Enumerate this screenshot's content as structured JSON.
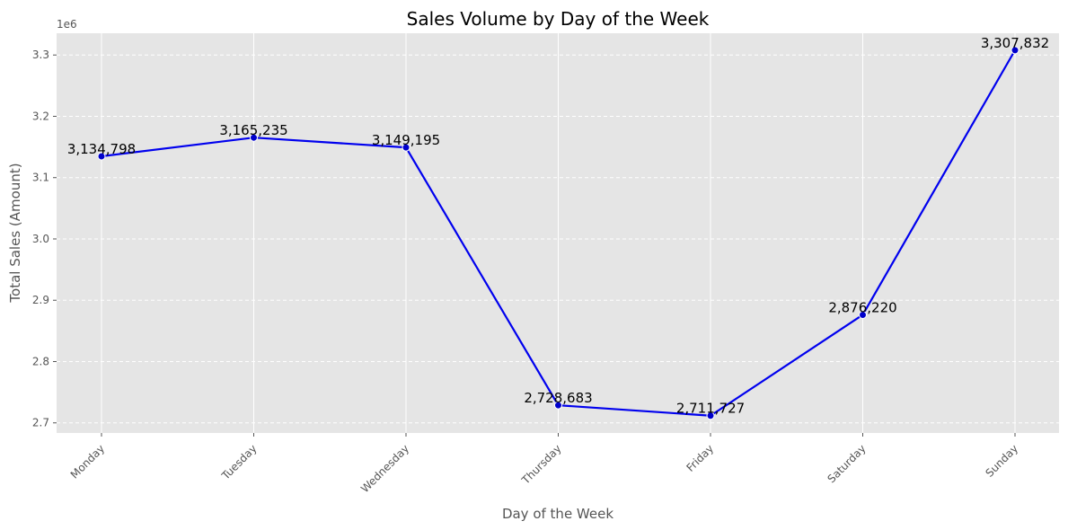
{
  "chart_data": {
    "type": "line",
    "title": "Sales Volume by Day of the Week",
    "xlabel": "Day of the Week",
    "ylabel": "Total Sales (Amount)",
    "y_offset_label": "1e6",
    "categories": [
      "Monday",
      "Tuesday",
      "Wednesday",
      "Thursday",
      "Friday",
      "Saturday",
      "Sunday"
    ],
    "values": [
      3134798,
      3165235,
      3149195,
      2728683,
      2711727,
      2876220,
      3307832
    ],
    "data_labels": [
      "3,134,798",
      "3,165,235",
      "3,149,195",
      "2,728,683",
      "2,711,727",
      "2,876,220",
      "3,307,832"
    ],
    "y_ticks": [
      2.7,
      2.8,
      2.9,
      3.0,
      3.1,
      3.2,
      3.3
    ],
    "y_tick_labels": [
      "2.7",
      "2.8",
      "2.9",
      "3.0",
      "3.1",
      "3.2",
      "3.3"
    ],
    "ylim": [
      2.6835,
      3.3355
    ],
    "y_scale": 1000000,
    "grid": true,
    "legend": "none",
    "colors": {
      "line": "#0000ee",
      "marker": "#0000cc",
      "plot_background": "#e5e5e5",
      "grid_major": "#ffffff"
    }
  }
}
